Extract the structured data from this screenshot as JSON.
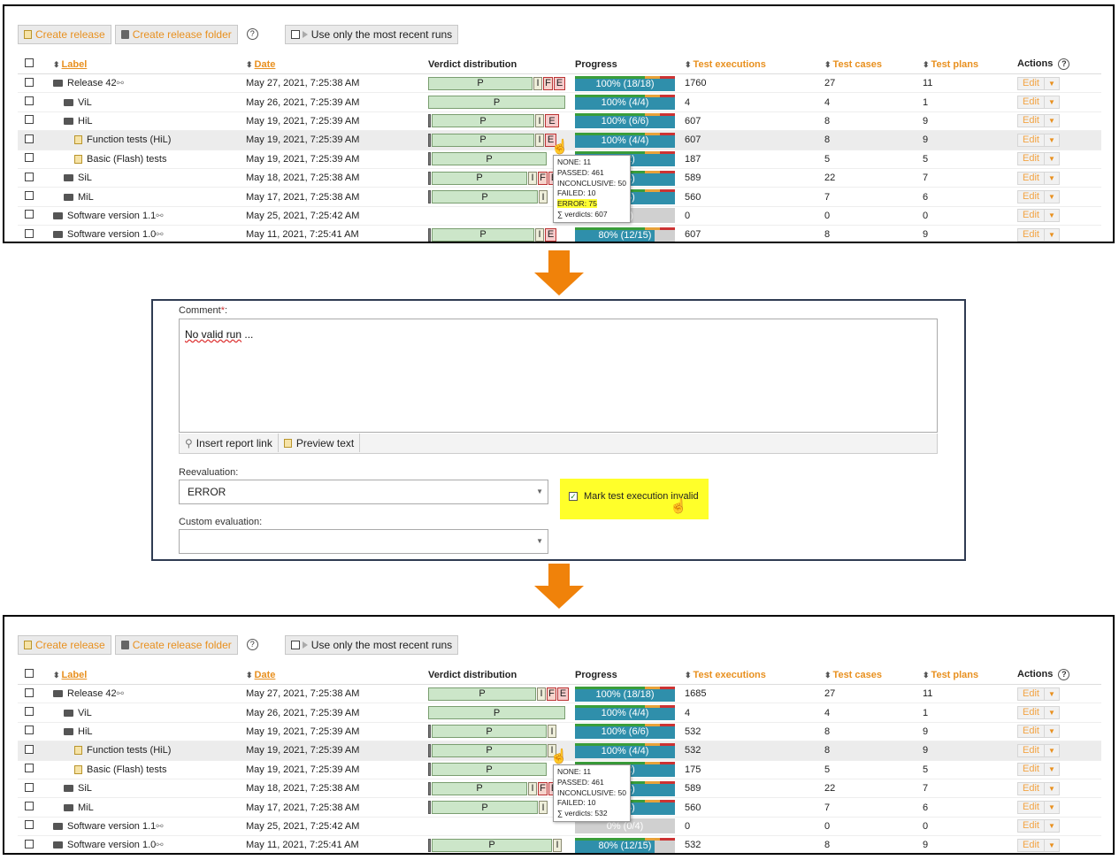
{
  "toolbar": {
    "create_release": "Create release",
    "create_folder": "Create release folder",
    "help": "?",
    "recent_runs": "Use only the most recent runs"
  },
  "headers": {
    "label": "Label",
    "date": "Date",
    "verdict": "Verdict distribution",
    "progress": "Progress",
    "executions": "Test executions",
    "cases": "Test cases",
    "plans": "Test plans",
    "actions": "Actions"
  },
  "edit": {
    "label": "Edit",
    "dropdown": "▼"
  },
  "top_rows": [
    {
      "label": "Release 42",
      "date": "May 27, 2021, 7:25:38 AM",
      "progress": "100% (18/18)",
      "exec": "1760",
      "cases": "27",
      "plans": "11"
    },
    {
      "label": "ViL",
      "date": "May 26, 2021, 7:25:39 AM",
      "progress": "100% (4/4)",
      "exec": "4",
      "cases": "4",
      "plans": "1"
    },
    {
      "label": "HiL",
      "date": "May 19, 2021, 7:25:39 AM",
      "progress": "100% (6/6)",
      "exec": "607",
      "cases": "8",
      "plans": "9"
    },
    {
      "label": "Function tests (HiL)",
      "date": "May 19, 2021, 7:25:39 AM",
      "progress": "100% (4/4)",
      "exec": "607",
      "cases": "8",
      "plans": "9"
    },
    {
      "label": "Basic (Flash) tests",
      "date": "May 19, 2021, 7:25:39 AM",
      "progress": "(2/2)",
      "exec": "187",
      "cases": "5",
      "plans": "5"
    },
    {
      "label": "SiL",
      "date": "May 18, 2021, 7:25:38 AM",
      "progress": "(4/4)",
      "exec": "589",
      "cases": "22",
      "plans": "7"
    },
    {
      "label": "MiL",
      "date": "May 17, 2021, 7:25:38 AM",
      "progress": "(4/4)",
      "exec": "560",
      "cases": "7",
      "plans": "6"
    },
    {
      "label": "Software version 1.1",
      "date": "May 25, 2021, 7:25:42 AM",
      "progress": "0/4)",
      "exec": "0",
      "cases": "0",
      "plans": "0"
    },
    {
      "label": "Software version 1.0",
      "date": "May 11, 2021, 7:25:41 AM",
      "progress": "80% (12/15)",
      "exec": "607",
      "cases": "8",
      "plans": "9"
    }
  ],
  "bottom_rows": [
    {
      "label": "Release 42",
      "date": "May 27, 2021, 7:25:38 AM",
      "progress": "100% (18/18)",
      "exec": "1685",
      "cases": "27",
      "plans": "11"
    },
    {
      "label": "ViL",
      "date": "May 26, 2021, 7:25:39 AM",
      "progress": "100% (4/4)",
      "exec": "4",
      "cases": "4",
      "plans": "1"
    },
    {
      "label": "HiL",
      "date": "May 19, 2021, 7:25:39 AM",
      "progress": "100% (6/6)",
      "exec": "532",
      "cases": "8",
      "plans": "9"
    },
    {
      "label": "Function tests (HiL)",
      "date": "May 19, 2021, 7:25:39 AM",
      "progress": "100% (4/4)",
      "exec": "532",
      "cases": "8",
      "plans": "9"
    },
    {
      "label": "Basic (Flash) tests",
      "date": "May 19, 2021, 7:25:39 AM",
      "progress": "(2/2)",
      "exec": "175",
      "cases": "5",
      "plans": "5"
    },
    {
      "label": "SiL",
      "date": "May 18, 2021, 7:25:38 AM",
      "progress": "(4/4)",
      "exec": "589",
      "cases": "22",
      "plans": "7"
    },
    {
      "label": "MiL",
      "date": "May 17, 2021, 7:25:38 AM",
      "progress": "(4/4)",
      "exec": "560",
      "cases": "7",
      "plans": "6"
    },
    {
      "label": "Software version 1.1",
      "date": "May 25, 2021, 7:25:42 AM",
      "progress": "0% (0/4)",
      "exec": "0",
      "cases": "0",
      "plans": "0"
    },
    {
      "label": "Software version 1.0",
      "date": "May 11, 2021, 7:25:41 AM",
      "progress": "80% (12/15)",
      "exec": "532",
      "cases": "8",
      "plans": "9"
    }
  ],
  "verdict_letters": {
    "p": "P",
    "i": "I",
    "f": "F",
    "e": "E"
  },
  "tooltip_top": [
    "NONE: 11",
    "PASSED: 461",
    "INCONCLUSIVE: 50",
    "FAILED: 10",
    "ERROR: 75",
    "∑ verdicts: 607"
  ],
  "tooltip_bottom": [
    "NONE: 11",
    "PASSED: 461",
    "INCONCLUSIVE: 50",
    "FAILED: 10",
    "∑ verdicts: 532"
  ],
  "form": {
    "comment_label": "Comment",
    "required": "*",
    "comment_colon": ":",
    "comment_word": "No valid run",
    "comment_rest": " ...",
    "insert_link": "Insert report link",
    "preview": "Preview text",
    "reeval_label": "Reevaluation:",
    "reeval_value": "ERROR",
    "mark_invalid": "Mark test execution invalid",
    "custom_label": "Custom evaluation:"
  },
  "colors": {
    "accent": "#e8901f",
    "arrow": "#f0820a",
    "highlight": "#ffff2a",
    "progress": "#2f8fab"
  }
}
